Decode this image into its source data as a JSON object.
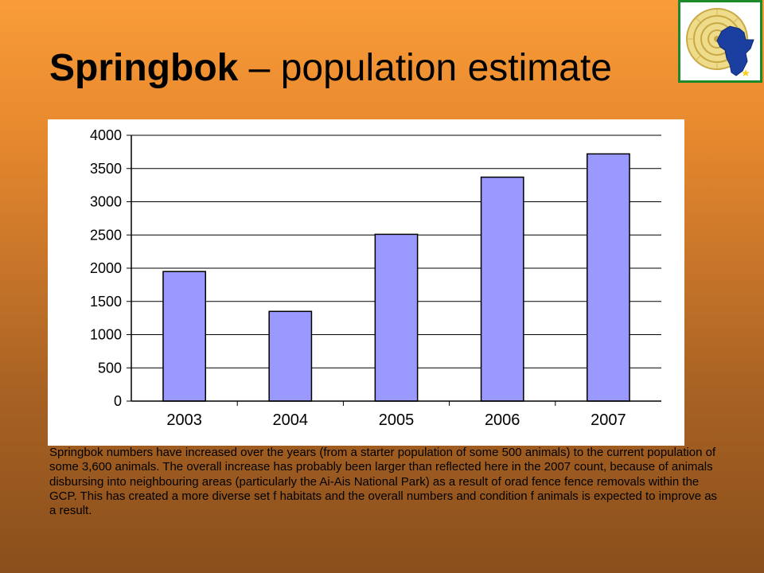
{
  "slide": {
    "title_bold": "Springbok",
    "title_rest": " – population estimate",
    "caption": "Springbok numbers have increased over the years (from a starter population of some 500 animals) to the current population of some 3,600 animals. The overall increase has probably been larger than reflected here in the 2007 count, because of animals disbursing into neighbouring areas (particularly the Ai-Ais National Park) as a result of orad fence fence removals within the GCP. This has created a more diverse set f habitats and the overall numbers and condition f animals is expected to improve as a result."
  },
  "logo": {
    "icon": "ammonite-africa-logo-icon",
    "border_color": "#1c8a2a",
    "africa_color": "#1a3fa0",
    "shell_color": "#e8cf72"
  },
  "chart_data": {
    "type": "bar",
    "categories": [
      "2003",
      "2004",
      "2005",
      "2006",
      "2007"
    ],
    "values": [
      1950,
      1350,
      2510,
      3370,
      3720
    ],
    "ylim": [
      0,
      4000
    ],
    "yticks": [
      "0",
      "500",
      "1000",
      "1500",
      "2000",
      "2500",
      "3000",
      "3500",
      "4000"
    ],
    "grid": true,
    "bar_color": "#9999ff",
    "title": "",
    "xlabel": "",
    "ylabel": ""
  }
}
